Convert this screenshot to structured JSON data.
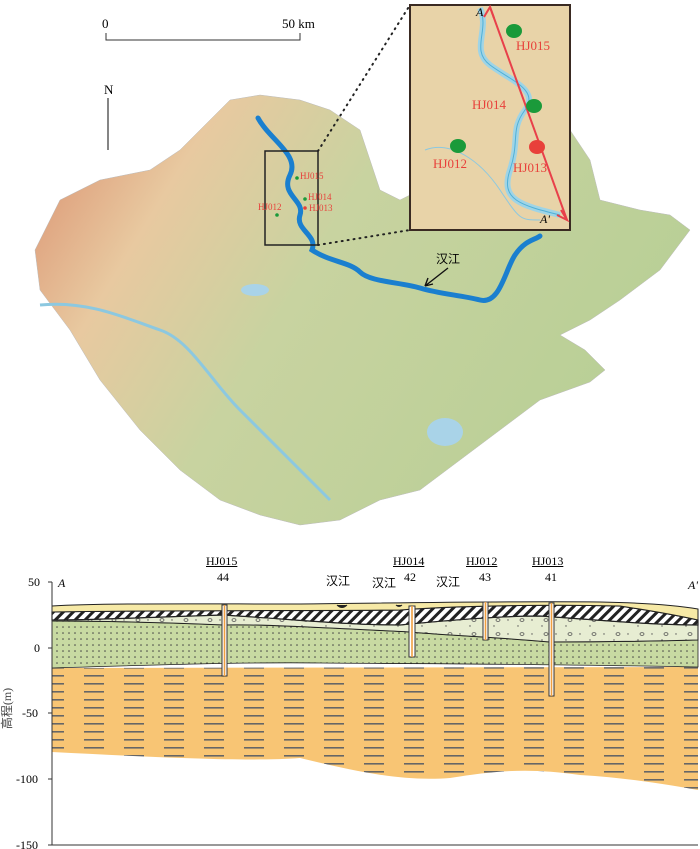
{
  "map": {
    "scale_bar": {
      "start_label": "0",
      "end_label": "50 km"
    },
    "north_label": "N",
    "river_label": "汉江",
    "overview_wells": [
      "HJ015",
      "HJ014",
      "HJ012",
      "HJ013"
    ],
    "inset": {
      "section_start": "A",
      "section_end": "A'",
      "wells": [
        {
          "name": "HJ015",
          "marker_color": "#1a9a3a"
        },
        {
          "name": "HJ014",
          "marker_color": "#1a9a3a"
        },
        {
          "name": "HJ012",
          "marker_color": "#1a9a3a"
        },
        {
          "name": "HJ013",
          "marker_color": "#e8403a"
        }
      ]
    },
    "colors": {
      "han_river": "#1a7fcf",
      "section_line": "#e8404a",
      "label_red": "#e8403a"
    }
  },
  "section": {
    "start_label": "A",
    "end_label": "A'",
    "y_axis_label": "高程(m)",
    "y_ticks": [
      "50",
      "0",
      "-50",
      "-100",
      "-150"
    ],
    "y_range_m": [
      -150,
      50
    ],
    "river_labels": [
      "汉江",
      "汉江",
      "汉江"
    ],
    "boreholes": [
      {
        "name": "HJ015",
        "depth_label": "44"
      },
      {
        "name": "HJ014",
        "depth_label": "42"
      },
      {
        "name": "HJ012",
        "depth_label": "43"
      },
      {
        "name": "HJ013",
        "depth_label": "41"
      }
    ],
    "layer_colors": {
      "top_soil": "#f6e9a6",
      "hatched_clay": "#ffffff",
      "gravel_sand": "#e7edd2",
      "fine_sand": "#c8daa2",
      "clay_silt": "#f8c574"
    }
  }
}
